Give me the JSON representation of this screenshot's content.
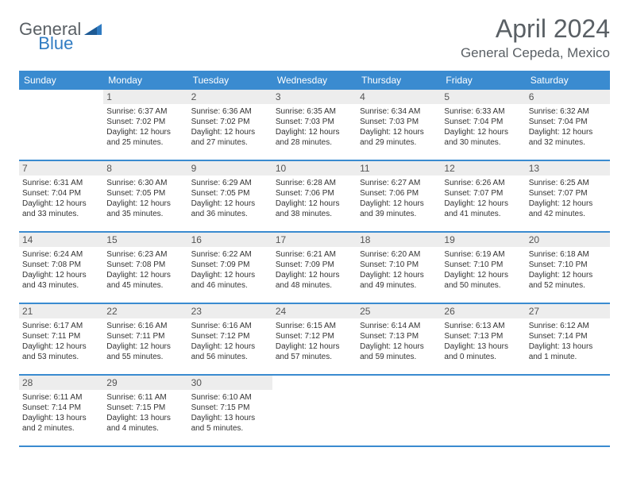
{
  "logo": {
    "general": "General",
    "blue": "Blue"
  },
  "title": "April 2024",
  "location": "General Cepeda, Mexico",
  "colors": {
    "header_bg": "#3a8bd0",
    "header_text": "#ffffff",
    "daynum_bg": "#ededed",
    "text": "#333333",
    "logo_gray": "#5a6065",
    "logo_blue": "#2f7bc2"
  },
  "dow": [
    "Sunday",
    "Monday",
    "Tuesday",
    "Wednesday",
    "Thursday",
    "Friday",
    "Saturday"
  ],
  "weeks": [
    [
      {
        "n": "",
        "sr": "",
        "ss": "",
        "dl": ""
      },
      {
        "n": "1",
        "sr": "Sunrise: 6:37 AM",
        "ss": "Sunset: 7:02 PM",
        "dl": "Daylight: 12 hours and 25 minutes."
      },
      {
        "n": "2",
        "sr": "Sunrise: 6:36 AM",
        "ss": "Sunset: 7:02 PM",
        "dl": "Daylight: 12 hours and 27 minutes."
      },
      {
        "n": "3",
        "sr": "Sunrise: 6:35 AM",
        "ss": "Sunset: 7:03 PM",
        "dl": "Daylight: 12 hours and 28 minutes."
      },
      {
        "n": "4",
        "sr": "Sunrise: 6:34 AM",
        "ss": "Sunset: 7:03 PM",
        "dl": "Daylight: 12 hours and 29 minutes."
      },
      {
        "n": "5",
        "sr": "Sunrise: 6:33 AM",
        "ss": "Sunset: 7:04 PM",
        "dl": "Daylight: 12 hours and 30 minutes."
      },
      {
        "n": "6",
        "sr": "Sunrise: 6:32 AM",
        "ss": "Sunset: 7:04 PM",
        "dl": "Daylight: 12 hours and 32 minutes."
      }
    ],
    [
      {
        "n": "7",
        "sr": "Sunrise: 6:31 AM",
        "ss": "Sunset: 7:04 PM",
        "dl": "Daylight: 12 hours and 33 minutes."
      },
      {
        "n": "8",
        "sr": "Sunrise: 6:30 AM",
        "ss": "Sunset: 7:05 PM",
        "dl": "Daylight: 12 hours and 35 minutes."
      },
      {
        "n": "9",
        "sr": "Sunrise: 6:29 AM",
        "ss": "Sunset: 7:05 PM",
        "dl": "Daylight: 12 hours and 36 minutes."
      },
      {
        "n": "10",
        "sr": "Sunrise: 6:28 AM",
        "ss": "Sunset: 7:06 PM",
        "dl": "Daylight: 12 hours and 38 minutes."
      },
      {
        "n": "11",
        "sr": "Sunrise: 6:27 AM",
        "ss": "Sunset: 7:06 PM",
        "dl": "Daylight: 12 hours and 39 minutes."
      },
      {
        "n": "12",
        "sr": "Sunrise: 6:26 AM",
        "ss": "Sunset: 7:07 PM",
        "dl": "Daylight: 12 hours and 41 minutes."
      },
      {
        "n": "13",
        "sr": "Sunrise: 6:25 AM",
        "ss": "Sunset: 7:07 PM",
        "dl": "Daylight: 12 hours and 42 minutes."
      }
    ],
    [
      {
        "n": "14",
        "sr": "Sunrise: 6:24 AM",
        "ss": "Sunset: 7:08 PM",
        "dl": "Daylight: 12 hours and 43 minutes."
      },
      {
        "n": "15",
        "sr": "Sunrise: 6:23 AM",
        "ss": "Sunset: 7:08 PM",
        "dl": "Daylight: 12 hours and 45 minutes."
      },
      {
        "n": "16",
        "sr": "Sunrise: 6:22 AM",
        "ss": "Sunset: 7:09 PM",
        "dl": "Daylight: 12 hours and 46 minutes."
      },
      {
        "n": "17",
        "sr": "Sunrise: 6:21 AM",
        "ss": "Sunset: 7:09 PM",
        "dl": "Daylight: 12 hours and 48 minutes."
      },
      {
        "n": "18",
        "sr": "Sunrise: 6:20 AM",
        "ss": "Sunset: 7:10 PM",
        "dl": "Daylight: 12 hours and 49 minutes."
      },
      {
        "n": "19",
        "sr": "Sunrise: 6:19 AM",
        "ss": "Sunset: 7:10 PM",
        "dl": "Daylight: 12 hours and 50 minutes."
      },
      {
        "n": "20",
        "sr": "Sunrise: 6:18 AM",
        "ss": "Sunset: 7:10 PM",
        "dl": "Daylight: 12 hours and 52 minutes."
      }
    ],
    [
      {
        "n": "21",
        "sr": "Sunrise: 6:17 AM",
        "ss": "Sunset: 7:11 PM",
        "dl": "Daylight: 12 hours and 53 minutes."
      },
      {
        "n": "22",
        "sr": "Sunrise: 6:16 AM",
        "ss": "Sunset: 7:11 PM",
        "dl": "Daylight: 12 hours and 55 minutes."
      },
      {
        "n": "23",
        "sr": "Sunrise: 6:16 AM",
        "ss": "Sunset: 7:12 PM",
        "dl": "Daylight: 12 hours and 56 minutes."
      },
      {
        "n": "24",
        "sr": "Sunrise: 6:15 AM",
        "ss": "Sunset: 7:12 PM",
        "dl": "Daylight: 12 hours and 57 minutes."
      },
      {
        "n": "25",
        "sr": "Sunrise: 6:14 AM",
        "ss": "Sunset: 7:13 PM",
        "dl": "Daylight: 12 hours and 59 minutes."
      },
      {
        "n": "26",
        "sr": "Sunrise: 6:13 AM",
        "ss": "Sunset: 7:13 PM",
        "dl": "Daylight: 13 hours and 0 minutes."
      },
      {
        "n": "27",
        "sr": "Sunrise: 6:12 AM",
        "ss": "Sunset: 7:14 PM",
        "dl": "Daylight: 13 hours and 1 minute."
      }
    ],
    [
      {
        "n": "28",
        "sr": "Sunrise: 6:11 AM",
        "ss": "Sunset: 7:14 PM",
        "dl": "Daylight: 13 hours and 2 minutes."
      },
      {
        "n": "29",
        "sr": "Sunrise: 6:11 AM",
        "ss": "Sunset: 7:15 PM",
        "dl": "Daylight: 13 hours and 4 minutes."
      },
      {
        "n": "30",
        "sr": "Sunrise: 6:10 AM",
        "ss": "Sunset: 7:15 PM",
        "dl": "Daylight: 13 hours and 5 minutes."
      },
      {
        "n": "",
        "sr": "",
        "ss": "",
        "dl": ""
      },
      {
        "n": "",
        "sr": "",
        "ss": "",
        "dl": ""
      },
      {
        "n": "",
        "sr": "",
        "ss": "",
        "dl": ""
      },
      {
        "n": "",
        "sr": "",
        "ss": "",
        "dl": ""
      }
    ]
  ]
}
